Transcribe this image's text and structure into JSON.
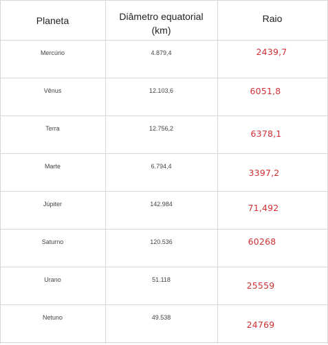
{
  "table": {
    "headers": {
      "planet": "Planeta",
      "diameter_line1": "Diâmetro equatorial",
      "diameter_line2": "(km)",
      "radius": "Raio"
    },
    "rows": [
      {
        "planet": "Mercúrio",
        "diameter": "4.879,4",
        "radius": "2439,7"
      },
      {
        "planet": "Vênus",
        "diameter": "12.103,6",
        "radius": "6051,8"
      },
      {
        "planet": "Terra",
        "diameter": "12.756,2",
        "radius": "6378,1"
      },
      {
        "planet": "Marte",
        "diameter": "6.794,4",
        "radius": "3397,2"
      },
      {
        "planet": "Júpiter",
        "diameter": "142.984",
        "radius": "71,492"
      },
      {
        "planet": "Saturno",
        "diameter": "120.536",
        "radius": "60268"
      },
      {
        "planet": "Urano",
        "diameter": "51.118",
        "radius": "25559"
      },
      {
        "planet": "Netuno",
        "diameter": "49.538",
        "radius": "24769"
      }
    ]
  },
  "colors": {
    "handwritten": "#d32f35",
    "grid": "#d6d6d6"
  }
}
